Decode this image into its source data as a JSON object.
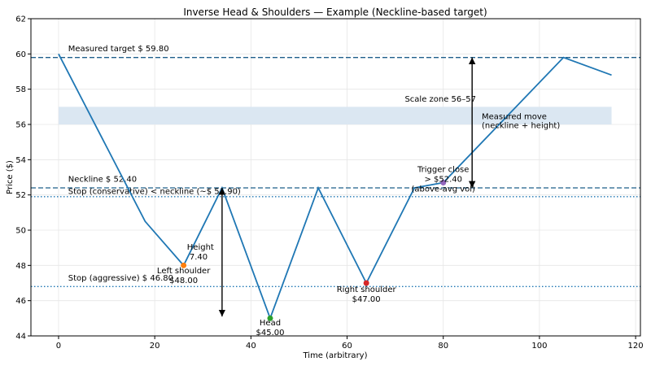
{
  "chart_data": {
    "type": "line",
    "title": "Inverse Head & Shoulders — Example (Neckline-based target)",
    "xlabel": "Time (arbitrary)",
    "ylabel": "Price ($)",
    "xlim": [
      -5.75,
      121
    ],
    "ylim": [
      44,
      62
    ],
    "xticks": [
      0,
      20,
      40,
      60,
      80,
      100,
      120
    ],
    "yticks": [
      44,
      46,
      48,
      50,
      52,
      54,
      56,
      58,
      60,
      62
    ],
    "grid": true,
    "series": [
      {
        "color": "#1f77b4",
        "x": [
          0,
          18,
          26,
          34,
          44,
          54,
          64,
          74,
          80,
          105,
          115
        ],
        "y": [
          60,
          50.5,
          48,
          52.4,
          45,
          52.4,
          47,
          52.4,
          52.7,
          59.8,
          58.8
        ]
      }
    ],
    "hlines": [
      {
        "y": 59.8,
        "style": "dashed",
        "color": "#1f5f8b",
        "label": "Measured target $ 59.80"
      },
      {
        "y": 52.4,
        "style": "dashed",
        "color": "#1f5f8b",
        "label": "Neckline $ 52.40"
      },
      {
        "y": 51.9,
        "style": "dotted",
        "color": "#1f77b4",
        "label": "Stop (conservative) < neckline (~$ 51.90)"
      },
      {
        "y": 46.8,
        "style": "dotted",
        "color": "#1f77b4",
        "label": "Stop (aggressive) $ 46.80"
      }
    ],
    "zone": {
      "y0": 56,
      "y1": 57,
      "x0": 0,
      "x1": 115,
      "color": "#dbe7f2",
      "label": "Scale zone 56–57"
    },
    "markers": [
      {
        "x": 26,
        "y": 48,
        "color": "#ff7f0e",
        "label": [
          "Left shoulder",
          "$48.00"
        ]
      },
      {
        "x": 44,
        "y": 45,
        "color": "#2ca02c",
        "label": [
          "Head",
          "$45.00"
        ]
      },
      {
        "x": 64,
        "y": 47,
        "color": "#d62728",
        "label": [
          "Right shoulder",
          "$47.00"
        ]
      },
      {
        "x": 80,
        "y": 52.7,
        "color": "#9467bd",
        "label": [
          "Trigger close",
          "> $52.40",
          "(above-avg vol)"
        ]
      }
    ],
    "arrows": [
      {
        "x": 34,
        "y0": 45.1,
        "y1": 52.4,
        "label": [
          "Height",
          "7.40"
        ]
      },
      {
        "x": 86,
        "y0": 52.4,
        "y1": 59.8,
        "label": [
          "Measured move",
          "(neckline + height)"
        ]
      }
    ]
  }
}
